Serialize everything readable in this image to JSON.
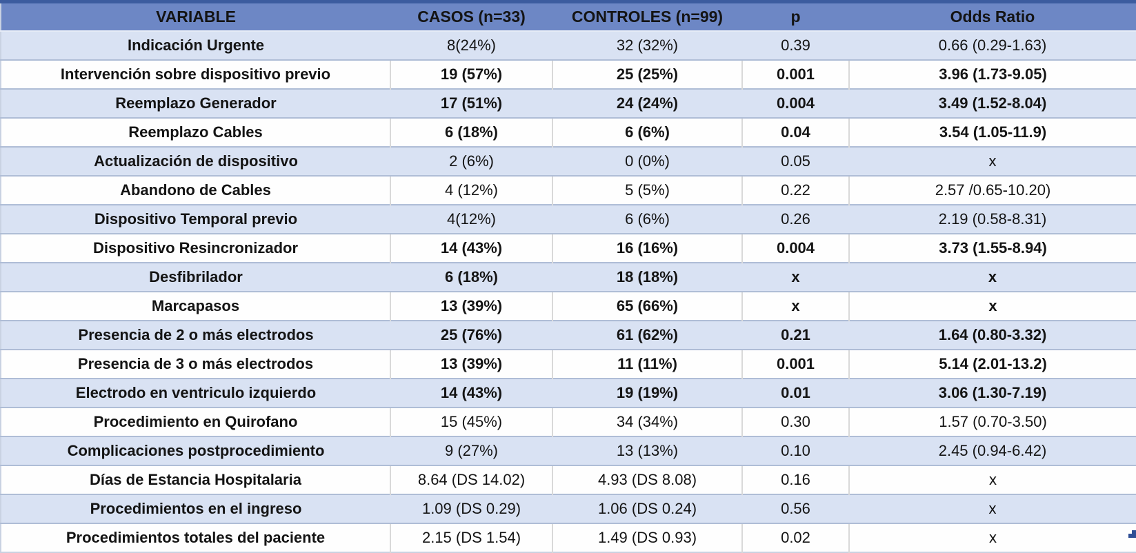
{
  "chart_data": {
    "type": "table",
    "columns": [
      "VARIABLE",
      "CASOS (n=33)",
      "CONTROLES (n=99)",
      "p",
      "Odds Ratio"
    ],
    "rows": [
      {
        "variable": "Indicación Urgente",
        "casos": "8(24%)",
        "controles": "32 (32%)",
        "p": "0.39",
        "odds_ratio": "0.66 (0.29-1.63)",
        "bold": false
      },
      {
        "variable": "Intervención sobre dispositivo previo",
        "casos": "19 (57%)",
        "controles": "25 (25%)",
        "p": "0.001",
        "odds_ratio": "3.96 (1.73-9.05)",
        "bold": true
      },
      {
        "variable": "Reemplazo Generador",
        "casos": "17 (51%)",
        "controles": "24 (24%)",
        "p": "0.004",
        "odds_ratio": "3.49 (1.52-8.04)",
        "bold": true
      },
      {
        "variable": "Reemplazo Cables",
        "casos": "6 (18%)",
        "controles": "6 (6%)",
        "p": "0.04",
        "odds_ratio": "3.54 (1.05-11.9)",
        "bold": true
      },
      {
        "variable": "Actualización de dispositivo",
        "casos": "2 (6%)",
        "controles": "0 (0%)",
        "p": "0.05",
        "odds_ratio": "x",
        "bold": false
      },
      {
        "variable": "Abandono de Cables",
        "casos": "4 (12%)",
        "controles": "5 (5%)",
        "p": "0.22",
        "odds_ratio": "2.57 /0.65-10.20)",
        "bold": false
      },
      {
        "variable": "Dispositivo Temporal previo",
        "casos": "4(12%)",
        "controles": "6 (6%)",
        "p": "0.26",
        "odds_ratio": "2.19 (0.58-8.31)",
        "bold": false
      },
      {
        "variable": "Dispositivo Resincronizador",
        "casos": "14 (43%)",
        "controles": "16 (16%)",
        "p": "0.004",
        "odds_ratio": "3.73 (1.55-8.94)",
        "bold": true
      },
      {
        "variable": "Desfibrilador",
        "casos": "6 (18%)",
        "controles": "18 (18%)",
        "p": "x",
        "odds_ratio": "x",
        "bold": true
      },
      {
        "variable": "Marcapasos",
        "casos": "13 (39%)",
        "controles": "65 (66%)",
        "p": "x",
        "odds_ratio": "x",
        "bold": true
      },
      {
        "variable": "Presencia de 2 o más electrodos",
        "casos": "25 (76%)",
        "controles": "61 (62%)",
        "p": "0.21",
        "odds_ratio": "1.64 (0.80-3.32)",
        "bold": true
      },
      {
        "variable": "Presencia de 3 o más electrodos",
        "casos": "13 (39%)",
        "controles": "11 (11%)",
        "p": "0.001",
        "odds_ratio": "5.14 (2.01-13.2)",
        "bold": true
      },
      {
        "variable": "Electrodo en ventriculo izquierdo",
        "casos": "14 (43%)",
        "controles": "19 (19%)",
        "p": "0.01",
        "odds_ratio": "3.06 (1.30-7.19)",
        "bold": true
      },
      {
        "variable": "Procedimiento en Quirofano",
        "casos": "15 (45%)",
        "controles": "34 (34%)",
        "p": "0.30",
        "odds_ratio": "1.57 (0.70-3.50)",
        "bold": false
      },
      {
        "variable": "Complicaciones postprocedimiento",
        "casos": "9 (27%)",
        "controles": "13 (13%)",
        "p": "0.10",
        "odds_ratio": "2.45 (0.94-6.42)",
        "bold": false
      },
      {
        "variable": "Días de Estancia Hospitalaria",
        "casos": "8.64 (DS 14.02)",
        "controles": "4.93 (DS 8.08)",
        "p": "0.16",
        "odds_ratio": "x",
        "bold": false
      },
      {
        "variable": "Procedimientos en el ingreso",
        "casos": "1.09 (DS 0.29)",
        "controles": "1.06 (DS 0.24)",
        "p": "0.56",
        "odds_ratio": "x",
        "bold": false
      },
      {
        "variable": "Procedimientos totales del paciente",
        "casos": "2.15 (DS 1.54)",
        "controles": "1.49 (DS 0.93)",
        "p": "0.02",
        "odds_ratio": "x",
        "bold": false
      }
    ]
  },
  "colors": {
    "header_bg": "#6D87C5",
    "row_alt_bg": "#D9E2F3",
    "row_bg": "#FEFEFE",
    "top_border": "#3C5C9F",
    "outer_border": "#C9D2E2",
    "grid_horizontal": "#AFBDD6",
    "grid_vertical": "#D9D9D9",
    "header_underline": "#E7ECF6",
    "text": "#141414",
    "fill_handle": "#2F4E95"
  }
}
